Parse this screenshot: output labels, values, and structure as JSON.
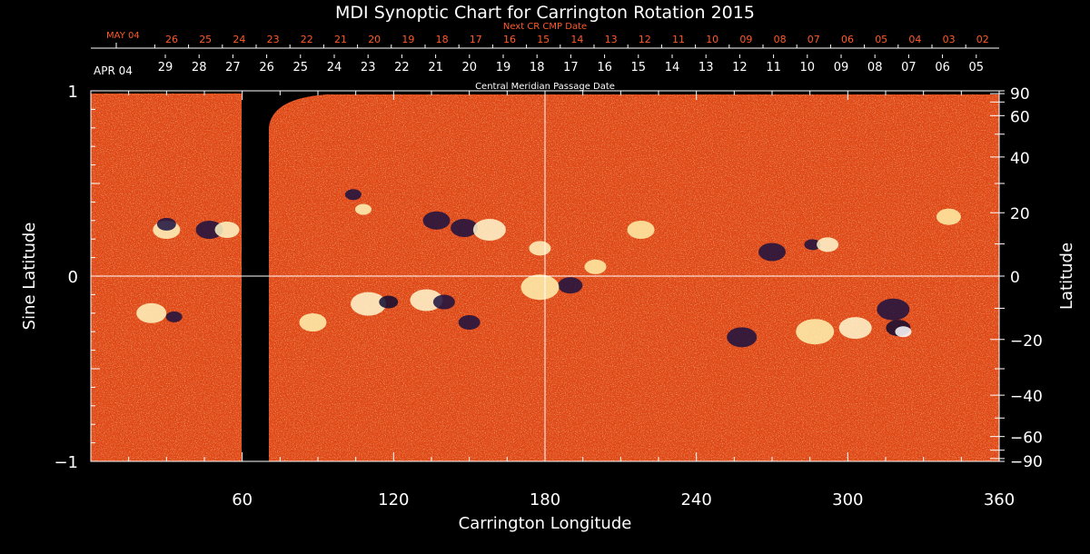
{
  "chart_data": {
    "type": "heatmap",
    "title": "MDI Synoptic Chart for Carrington Rotation 2015",
    "xlabel": "Carrington Longitude",
    "ylabel_left": "Sine Latitude",
    "ylabel_right": "Latitude",
    "xlim": [
      0,
      360
    ],
    "ylim": [
      -1,
      1
    ],
    "x_ticks": [
      60,
      120,
      180,
      240,
      300,
      360
    ],
    "y_ticks_left": [
      {
        "v": 1,
        "label": "1"
      },
      {
        "v": 0,
        "label": "0"
      },
      {
        "v": -1,
        "label": "−1"
      }
    ],
    "y_ticks_right": [
      "90",
      "60",
      "40",
      "20",
      "0",
      "−20",
      "−40",
      "−60",
      "−90"
    ],
    "top_axis": {
      "title": "Central Meridian Passage Date",
      "start_label": "APR 04",
      "dates": [
        "29",
        "28",
        "27",
        "26",
        "25",
        "24",
        "23",
        "22",
        "21",
        "20",
        "19",
        "18",
        "17",
        "16",
        "15",
        "14",
        "13",
        "12",
        "11",
        "10",
        "09",
        "08",
        "07",
        "06",
        "05"
      ]
    },
    "next_axis": {
      "title": "Next CR CMP Date",
      "start_label": "MAY 04",
      "dates": [
        "26",
        "25",
        "24",
        "23",
        "22",
        "21",
        "20",
        "19",
        "18",
        "17",
        "16",
        "15",
        "14",
        "13",
        "12",
        "11",
        "10",
        "09",
        "08",
        "07",
        "06",
        "05",
        "04",
        "03",
        "02"
      ]
    },
    "data_gap_longitude": [
      60,
      70
    ],
    "grid": "crosshair at 180 longitude and 0 latitude",
    "colors": {
      "background": "#e8501a",
      "positive": "#ffffc0",
      "negative": "#1a1040",
      "text": "#ffffff",
      "next_axis": "#ff5a2a"
    }
  }
}
